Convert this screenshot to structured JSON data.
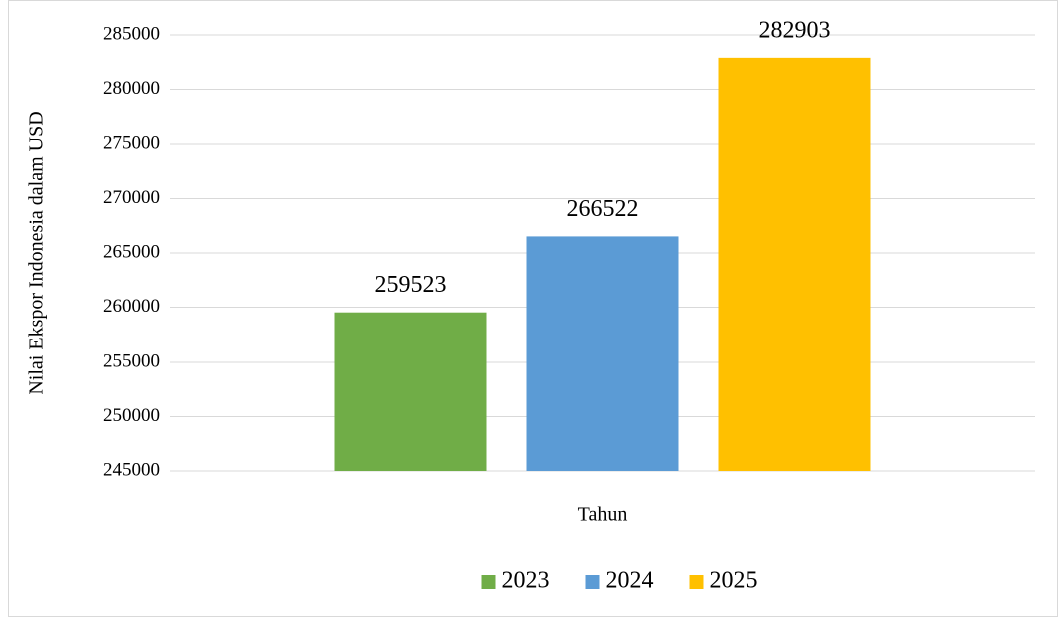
{
  "chart_data": {
    "type": "bar",
    "y_label": "Nilai Ekspor Indonesia dalam USD",
    "categories": [
      "Tahun"
    ],
    "series": [
      {
        "name": "2023",
        "color": "#70ad47",
        "values": [
          259523
        ]
      },
      {
        "name": "2024",
        "color": "#5b9bd5",
        "values": [
          266522
        ]
      },
      {
        "name": "2025",
        "color": "#ffc000",
        "values": [
          282903
        ]
      }
    ],
    "ylim": [
      245000,
      285000
    ],
    "yticks": [
      245000,
      250000,
      255000,
      260000,
      265000,
      270000,
      275000,
      280000,
      285000
    ],
    "grid": true,
    "legend": "bottom"
  }
}
